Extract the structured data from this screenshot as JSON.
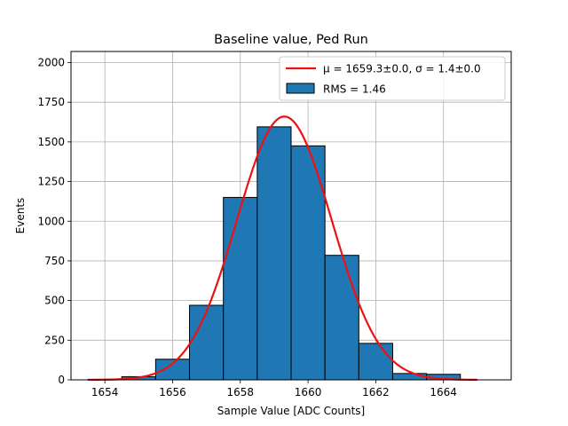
{
  "chart_data": {
    "type": "bar",
    "title": "Baseline value, Ped Run",
    "xlabel": "Sample Value [ADC Counts]",
    "ylabel": "Events",
    "xlim": [
      1653,
      1666
    ],
    "ylim": [
      0,
      2070
    ],
    "grid": true,
    "legend_position": "top-right",
    "xticks": [
      1654,
      1656,
      1658,
      1660,
      1662,
      1664
    ],
    "yticks": [
      0,
      250,
      500,
      750,
      1000,
      1250,
      1500,
      1750,
      2000
    ],
    "histogram": {
      "name": "RMS = 1.46",
      "bin_edges": [
        1653.5,
        1654.5,
        1655.5,
        1656.5,
        1657.5,
        1658.5,
        1659.5,
        1660.5,
        1661.5,
        1662.5,
        1663.5,
        1664.5
      ],
      "values": [
        3,
        20,
        130,
        470,
        1150,
        1595,
        1475,
        785,
        230,
        40,
        35
      ],
      "fill_color": "#1f77b4",
      "edge_color": "#000000"
    },
    "fit": {
      "name": "μ = 1659.3±0.0, σ = 1.4±0.0",
      "mu": 1659.3,
      "sigma": 1.4,
      "amplitude": 1660,
      "x_range": [
        1653.5,
        1665.0
      ],
      "color": "#ee1111"
    }
  }
}
